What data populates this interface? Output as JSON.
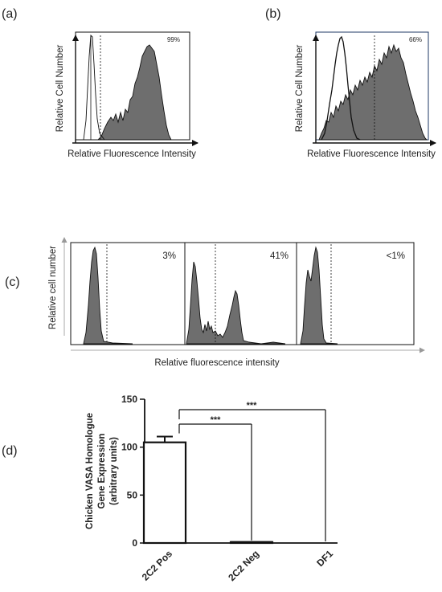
{
  "panels": {
    "a": {
      "label": "(a)",
      "ylabel": "Relative Cell Number",
      "xlabel": "Relative Fluorescence Intensity",
      "percent": "99%"
    },
    "b": {
      "label": "(b)",
      "ylabel": "Relative Cell Number",
      "xlabel": "Relative Fluorescence Intensity",
      "percent": "66%"
    },
    "c": {
      "label": "(c)",
      "ylabel": "Relative cell number",
      "xlabel": "Relative fluorescence intensity",
      "percents": [
        "3%",
        "41%",
        "<1%"
      ]
    },
    "d": {
      "label": "(d)"
    }
  },
  "colors": {
    "histogram_fill": "#6e6e6e",
    "line": "#111111",
    "frame_b": "#1f3864"
  },
  "chart_data": {
    "type": "bar",
    "categories": [
      "2C2 Pos",
      "2C2 Neg",
      "DF1"
    ],
    "values": [
      105,
      1,
      0
    ],
    "errors": [
      6,
      0,
      0
    ],
    "ylabel_lines": [
      "Chicken VASA Homologue",
      "Gene Expression",
      "(arbitrary units)"
    ],
    "xlabel": "",
    "ylim": [
      0,
      150
    ],
    "yticks": [
      0,
      50,
      100,
      150
    ],
    "comparisons": [
      {
        "from": "2C2 Pos",
        "to": "2C2 Neg",
        "label": "***"
      },
      {
        "from": "2C2 Pos",
        "to": "DF1",
        "label": "***"
      }
    ],
    "grid": false
  }
}
